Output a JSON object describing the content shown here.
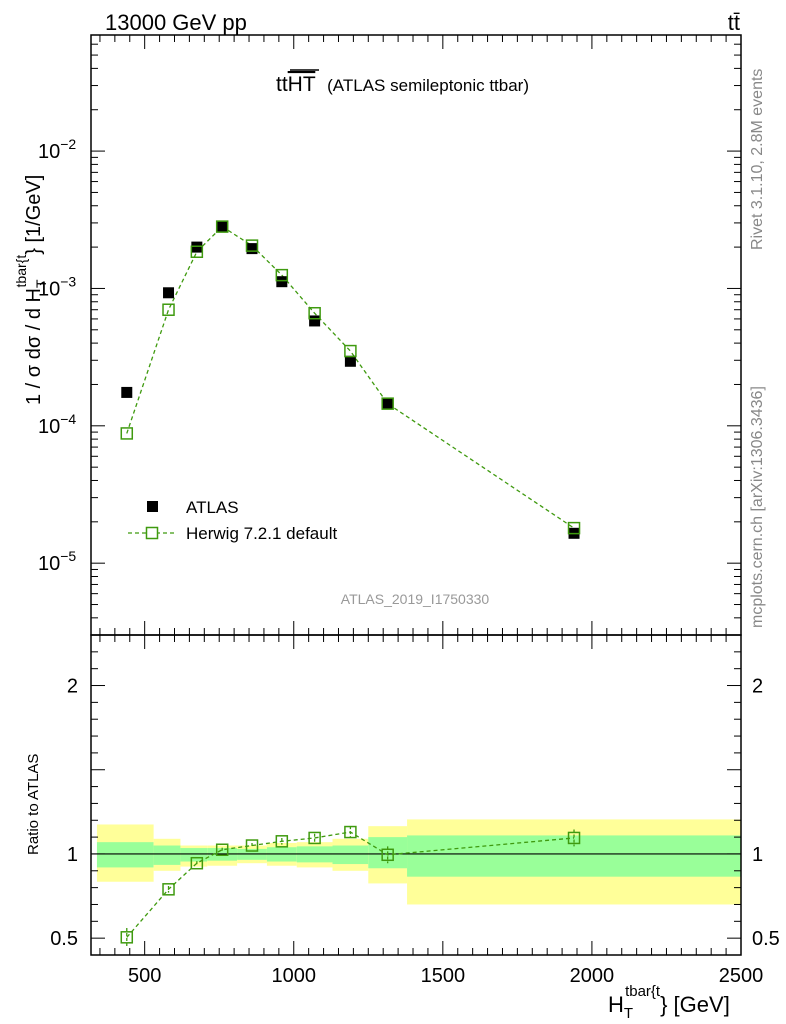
{
  "header": {
    "left": "13000 GeV pp",
    "right": "tt̄"
  },
  "side": {
    "rivet": "Rivet 3.1.10,  2.8M events",
    "mcplots": "mcplots.cern.ch [arXiv:1306.3436]"
  },
  "chart_data": {
    "type": "scatter",
    "title_main": "tt",
    "title_overline": "HT",
    "title_note": "(ATLAS semileptonic ttbar)",
    "analysis": "ATLAS_2019_I1750330",
    "xlabel_main": "H",
    "xlabel_sub": "T",
    "xlabel_sup": "tbar{t",
    "xlabel_unit": "} [GeV]",
    "ylabel_main": "1 / σ dσ / d H",
    "ylabel_sub": "T",
    "ylabel_sup": "tbar{t",
    "ylabel_unit": "} [1/GeV]",
    "ratio_ylabel": "Ratio to ATLAS",
    "xlim": [
      320,
      2500
    ],
    "ylim": [
      3e-06,
      0.07
    ],
    "ratio_ylim": [
      0.4,
      2.3
    ],
    "x_ticks": [
      {
        "v": 500,
        "label": "500"
      },
      {
        "v": 1000,
        "label": "1000"
      },
      {
        "v": 1500,
        "label": "1500"
      },
      {
        "v": 2000,
        "label": "2000"
      },
      {
        "v": 2500,
        "label": "2500"
      }
    ],
    "y_ticks": [
      {
        "exp": -2,
        "base": "10",
        "sup": "−2"
      },
      {
        "exp": -3,
        "base": "10",
        "sup": "−3"
      },
      {
        "exp": -4,
        "base": "10",
        "sup": "−4"
      },
      {
        "exp": -5,
        "base": "10",
        "sup": "−5"
      }
    ],
    "ratio_ticks": [
      {
        "v": 0.5,
        "label": "0.5"
      },
      {
        "v": 1,
        "label": "1"
      },
      {
        "v": 2,
        "label": "2"
      }
    ],
    "bins": [
      {
        "lo": 340,
        "hi": 530,
        "x": 440,
        "data": 0.000175,
        "mc": 8.8e-05,
        "ratio": 0.505,
        "ratio_err": 0.055,
        "band_inner": [
          0.92,
          1.07
        ],
        "band_outer": [
          0.835,
          1.175
        ]
      },
      {
        "lo": 530,
        "hi": 620,
        "x": 580,
        "data": 0.00093,
        "mc": 0.0007,
        "ratio": 0.79,
        "ratio_err": 0.02,
        "band_inner": [
          0.935,
          1.05
        ],
        "band_outer": [
          0.9,
          1.09
        ]
      },
      {
        "lo": 620,
        "hi": 710,
        "x": 675,
        "data": 0.002,
        "mc": 0.00185,
        "ratio": 0.945,
        "ratio_err": 0.012,
        "band_inner": [
          0.955,
          1.035
        ],
        "band_outer": [
          0.925,
          1.05
        ]
      },
      {
        "lo": 710,
        "hi": 810,
        "x": 760,
        "data": 0.0028,
        "mc": 0.00282,
        "ratio": 1.025,
        "ratio_err": 0.012,
        "band_inner": [
          0.96,
          1.035
        ],
        "band_outer": [
          0.93,
          1.05
        ]
      },
      {
        "lo": 810,
        "hi": 910,
        "x": 860,
        "data": 0.00195,
        "mc": 0.00205,
        "ratio": 1.05,
        "ratio_err": 0.015,
        "band_inner": [
          0.965,
          1.03
        ],
        "band_outer": [
          0.945,
          1.05
        ]
      },
      {
        "lo": 910,
        "hi": 1010,
        "x": 960,
        "data": 0.00112,
        "mc": 0.00125,
        "ratio": 1.075,
        "ratio_err": 0.02,
        "band_inner": [
          0.955,
          1.04
        ],
        "band_outer": [
          0.93,
          1.065
        ]
      },
      {
        "lo": 1010,
        "hi": 1130,
        "x": 1070,
        "data": 0.00058,
        "mc": 0.00066,
        "ratio": 1.095,
        "ratio_err": 0.025,
        "band_inner": [
          0.95,
          1.045
        ],
        "band_outer": [
          0.92,
          1.07
        ]
      },
      {
        "lo": 1130,
        "hi": 1250,
        "x": 1190,
        "data": 0.000295,
        "mc": 0.00035,
        "ratio": 1.13,
        "ratio_err": 0.035,
        "band_inner": [
          0.94,
          1.05
        ],
        "band_outer": [
          0.9,
          1.09
        ]
      },
      {
        "lo": 1250,
        "hi": 1380,
        "x": 1315,
        "data": 0.000145,
        "mc": 0.000145,
        "ratio": 0.995,
        "ratio_err": 0.05,
        "band_inner": [
          0.915,
          1.1
        ],
        "band_outer": [
          0.825,
          1.165
        ]
      },
      {
        "lo": 1380,
        "hi": 2500,
        "x": 1940,
        "data": 1.65e-05,
        "mc": 1.8e-05,
        "ratio": 1.095,
        "ratio_err": 0.05,
        "band_inner": [
          0.865,
          1.11
        ],
        "band_outer": [
          0.7,
          1.205
        ]
      }
    ],
    "legend": {
      "position": "lower-left",
      "entries": [
        {
          "label": "ATLAS",
          "marker": "filled-square",
          "color": "#000000"
        },
        {
          "label": "Herwig 7.2.1 default",
          "marker": "open-square-dashed",
          "color": "#3f9a0f"
        }
      ]
    },
    "colors": {
      "data": "#000000",
      "mc": "#3f9a0f",
      "band_inner": "#99ff99",
      "band_outer": "#ffff99",
      "analysis_label": "#999999",
      "side_text": "#888888"
    }
  }
}
